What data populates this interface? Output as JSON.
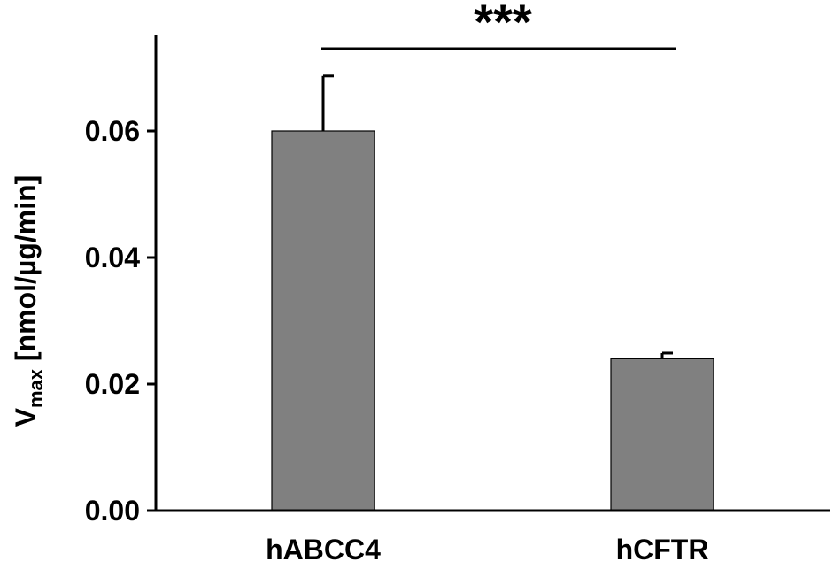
{
  "chart_data": {
    "type": "bar",
    "categories": [
      "hABCC4",
      "hCFTR"
    ],
    "values": [
      0.06,
      0.024
    ],
    "errors": [
      0.0087,
      0.0009
    ],
    "ylabel": {
      "main": "V",
      "subscript": "max",
      "units": " [nmol/µg/min]"
    },
    "ylim": [
      0,
      0.075
    ],
    "yticks": [
      "0.00",
      "0.02",
      "0.04",
      "0.06"
    ],
    "ytick_values": [
      0,
      0.02,
      0.04,
      0.06
    ],
    "significance": {
      "label": "***",
      "from": "hABCC4",
      "to": "hCFTR"
    },
    "bar_color": "#808080",
    "grid": false,
    "legend": "none"
  }
}
